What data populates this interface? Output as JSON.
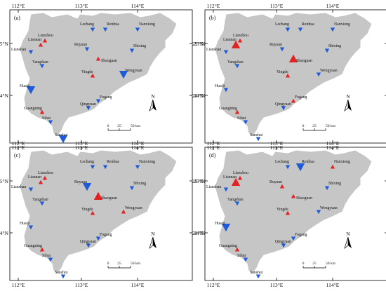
{
  "colors": {
    "increase": "#e32323",
    "decrease": "#1f5bd9",
    "region": "#c6c6c6"
  },
  "coords": {
    "lon_top": [
      "112°E",
      "113°E",
      "114°E"
    ],
    "lon_bottom": [
      "112°E",
      "113°E",
      "114°E"
    ],
    "lat": [
      "25°N",
      "24°N"
    ]
  },
  "north_label": "N",
  "scale": {
    "labels": [
      "0",
      "25",
      "50 km"
    ]
  },
  "stations": [
    "Lianzhou",
    "Liannan",
    "Lianshan",
    "Lechang",
    "Renhua",
    "Nanxiong",
    "Ruyuan",
    "Shixing",
    "Shaoguan",
    "Yangshan",
    "Yingde",
    "Wengyuan",
    "Huaiji",
    "Qingyuan",
    "Fogang",
    "Guangning",
    "Sihui",
    "Sanshui"
  ],
  "panels": [
    {
      "label": "(a)",
      "trends": [
        {
          "dir": "up",
          "size": 1
        },
        {
          "dir": "up",
          "size": 1
        },
        {
          "dir": "down",
          "size": 1
        },
        {
          "dir": "down",
          "size": 1
        },
        {
          "dir": "down",
          "size": 1
        },
        {
          "dir": "down",
          "size": 1
        },
        {
          "dir": "down",
          "size": 1
        },
        {
          "dir": "down",
          "size": 1
        },
        {
          "dir": "up",
          "size": 1
        },
        {
          "dir": "down",
          "size": 1
        },
        {
          "dir": "up",
          "size": 1
        },
        {
          "dir": "down",
          "size": 3
        },
        {
          "dir": "down",
          "size": 3
        },
        {
          "dir": "down",
          "size": 1
        },
        {
          "dir": "down",
          "size": 1
        },
        {
          "dir": "up",
          "size": 1
        },
        {
          "dir": "down",
          "size": 1
        },
        {
          "dir": "down",
          "size": 3
        }
      ]
    },
    {
      "label": "(b)",
      "trends": [
        {
          "dir": "up",
          "size": 1
        },
        {
          "dir": "up",
          "size": 3
        },
        {
          "dir": "down",
          "size": 1
        },
        {
          "dir": "down",
          "size": 1
        },
        {
          "dir": "down",
          "size": 1
        },
        {
          "dir": "down",
          "size": 1
        },
        {
          "dir": "down",
          "size": 1
        },
        {
          "dir": "down",
          "size": 1
        },
        {
          "dir": "up",
          "size": 3
        },
        {
          "dir": "down",
          "size": 1
        },
        {
          "dir": "up",
          "size": 1
        },
        {
          "dir": "down",
          "size": 1
        },
        {
          "dir": "down",
          "size": 1
        },
        {
          "dir": "down",
          "size": 1
        },
        {
          "dir": "up",
          "size": 1
        },
        {
          "dir": "up",
          "size": 1
        },
        {
          "dir": "down",
          "size": 1
        },
        {
          "dir": "down",
          "size": 1
        }
      ]
    },
    {
      "label": "(c)",
      "trends": [
        {
          "dir": "up",
          "size": 1
        },
        {
          "dir": "up",
          "size": 1
        },
        {
          "dir": "down",
          "size": 1
        },
        {
          "dir": "down",
          "size": 1
        },
        {
          "dir": "down",
          "size": 1
        },
        {
          "dir": "down",
          "size": 1
        },
        {
          "dir": "down",
          "size": 3
        },
        {
          "dir": "down",
          "size": 1
        },
        {
          "dir": "up",
          "size": 3
        },
        {
          "dir": "down",
          "size": 1
        },
        {
          "dir": "up",
          "size": 1
        },
        {
          "dir": "up",
          "size": 1
        },
        {
          "dir": "down",
          "size": 1
        },
        {
          "dir": "down",
          "size": 1
        },
        {
          "dir": "down",
          "size": 1
        },
        {
          "dir": "up",
          "size": 1
        },
        {
          "dir": "down",
          "size": 1
        },
        {
          "dir": "down",
          "size": 1
        }
      ]
    },
    {
      "label": "(d)",
      "trends": [
        {
          "dir": "up",
          "size": 1
        },
        {
          "dir": "up",
          "size": 3
        },
        {
          "dir": "down",
          "size": 1
        },
        {
          "dir": "down",
          "size": 1
        },
        {
          "dir": "down",
          "size": 3
        },
        {
          "dir": "up",
          "size": 1
        },
        {
          "dir": "up",
          "size": 1
        },
        {
          "dir": "down",
          "size": 1
        },
        {
          "dir": "up",
          "size": 1
        },
        {
          "dir": "down",
          "size": 1
        },
        {
          "dir": "up",
          "size": 1
        },
        {
          "dir": "down",
          "size": 1
        },
        {
          "dir": "down",
          "size": 3
        },
        {
          "dir": "down",
          "size": 1
        },
        {
          "dir": "down",
          "size": 1
        },
        {
          "dir": "up",
          "size": 1
        },
        {
          "dir": "down",
          "size": 1
        },
        {
          "dir": "down",
          "size": 1
        }
      ]
    }
  ]
}
